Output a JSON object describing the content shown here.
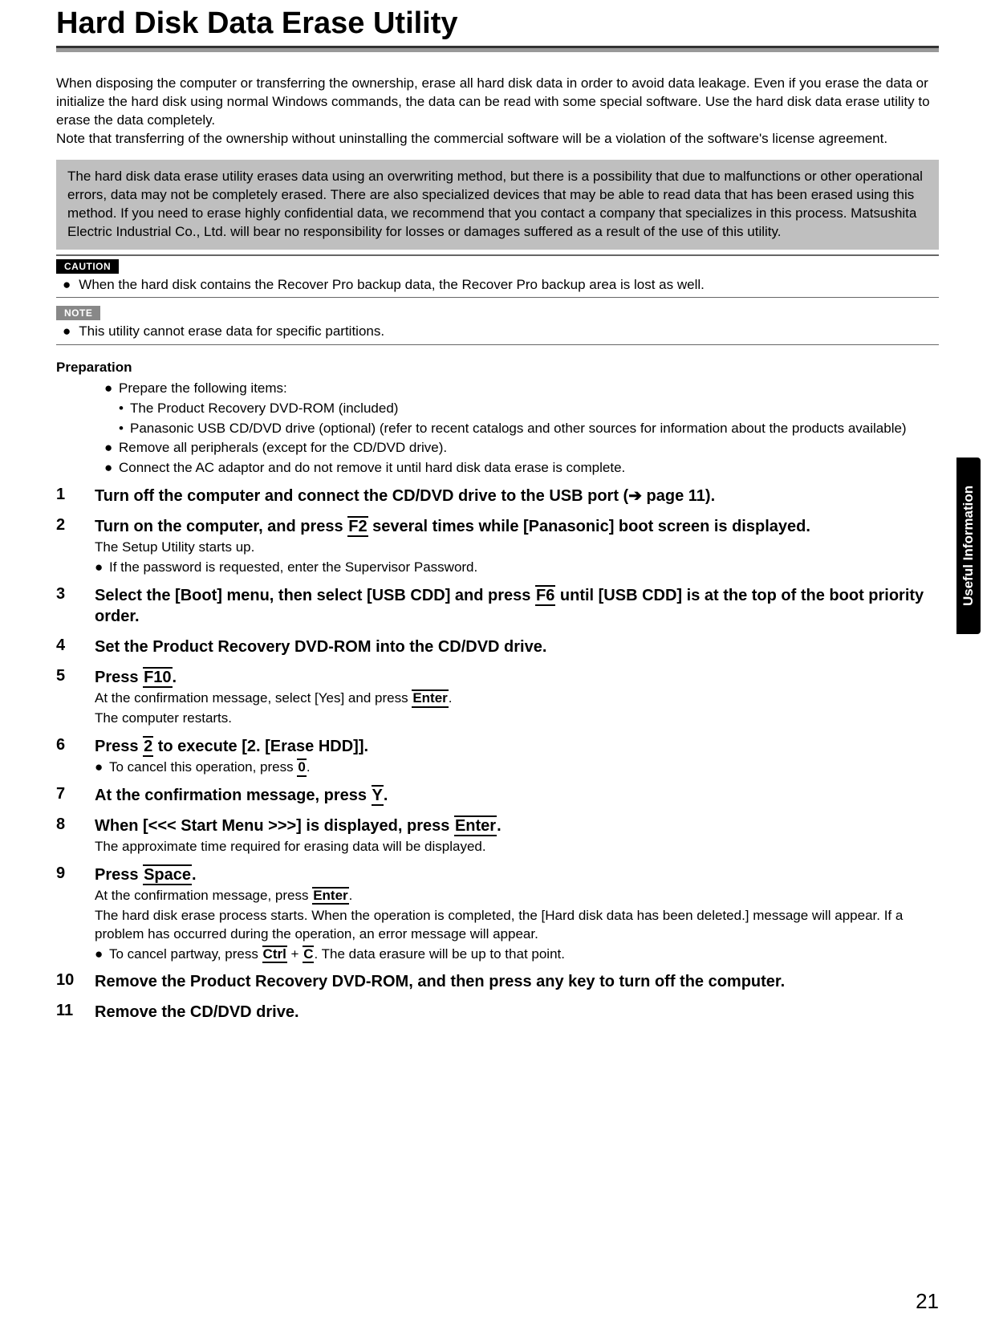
{
  "title": "Hard Disk Data Erase Utility",
  "intro": "When disposing the computer or transferring the ownership, erase all hard disk data in order to avoid data leakage. Even if you erase the data or initialize the hard disk using normal Windows commands, the data can be read with some special software. Use the hard disk data erase utility to erase the data completely.\nNote that transferring of the ownership without uninstalling the commercial software will be a violation of the software's license agreement.",
  "greybox": "The hard disk data erase utility erases data using an overwriting method, but there is a possibility that due to malfunctions or other operational errors, data may not be completely erased. There are also specialized devices that may be able to read data that has been erased using this method. If you need to erase highly confidential data, we recommend that you contact a company that specializes in this process. Matsushita Electric Industrial Co., Ltd. will bear no responsibility for losses or damages suffered as a result of the use of this utility.",
  "labels": {
    "caution": "CAUTION",
    "note": "NOTE"
  },
  "caution_text": "When the hard disk contains the Recover Pro backup data, the Recover Pro backup area is lost as well.",
  "note_text": "This utility cannot erase data for specific partitions.",
  "prep_heading": "Preparation",
  "prep": {
    "a": "Prepare the following items:",
    "a1": "The Product Recovery DVD-ROM (included)",
    "a2": "Panasonic USB CD/DVD drive (optional) (refer to recent catalogs and other sources for information about the products available)",
    "b": "Remove all peripherals (except for the CD/DVD drive).",
    "c": "Connect the AC adaptor and do not remove it until hard disk data erase is complete."
  },
  "steps": {
    "s1": {
      "n": "1",
      "t1": "Turn off the computer and connect the CD/DVD drive to the USB port (",
      "arrow": "➔",
      "t2": " page 11)."
    },
    "s2": {
      "n": "2",
      "t1": "Turn on the computer, and press ",
      "k": "F2",
      "t2": " several times while [Panasonic] boot screen is displayed.",
      "sub1": "The Setup Utility starts up.",
      "sub2": "If the password is requested, enter the Supervisor Password."
    },
    "s3": {
      "n": "3",
      "t1": "Select the [Boot] menu, then select [USB CDD] and press ",
      "k": "F6",
      "t2": " until [USB CDD] is at the top of the boot priority order."
    },
    "s4": {
      "n": "4",
      "t": "Set the Product Recovery DVD-ROM into the CD/DVD drive."
    },
    "s5": {
      "n": "5",
      "t1": "Press ",
      "k": "F10",
      "t2": ".",
      "sub1a": "At the confirmation message, select [Yes] and press ",
      "sub1k": "Enter",
      "sub1b": ".",
      "sub2": "The computer restarts."
    },
    "s6": {
      "n": "6",
      "t1": "Press ",
      "k": "2",
      "t2": " to execute [2. [Erase HDD]].",
      "sub1a": "To cancel this operation, press ",
      "sub1k": "0",
      "sub1b": "."
    },
    "s7": {
      "n": "7",
      "t1": "At the confirmation message, press ",
      "k": "Y",
      "t2": "."
    },
    "s8": {
      "n": "8",
      "t1": "When [<<< Start Menu >>>] is displayed, press ",
      "k": "Enter",
      "t2": ".",
      "sub1": "The approximate time required for erasing data will be displayed."
    },
    "s9": {
      "n": "9",
      "t1": "Press ",
      "k": "Space",
      "t2": ".",
      "sub1a": "At the confirmation message, press ",
      "sub1k": "Enter",
      "sub1b": ".",
      "sub2": "The hard disk erase process starts. When the operation is completed, the [Hard disk data has been deleted.] message will appear. If a problem has occurred during the operation, an error message will appear.",
      "sub3a": "To cancel partway, press ",
      "sub3k1": "Ctrl",
      "sub3plus": " + ",
      "sub3k2": "C",
      "sub3b": ". The data erasure will be up to that point."
    },
    "s10": {
      "n": "10",
      "t": "Remove the Product Recovery DVD-ROM, and then press any key to turn off the computer."
    },
    "s11": {
      "n": "11",
      "t": "Remove the CD/DVD drive."
    }
  },
  "side_tab": "Useful Information",
  "page_number": "21",
  "colors": {
    "greybox_bg": "#bfbfbf",
    "note_label_bg": "#888888",
    "caution_label_bg": "#000000",
    "text": "#000000"
  }
}
